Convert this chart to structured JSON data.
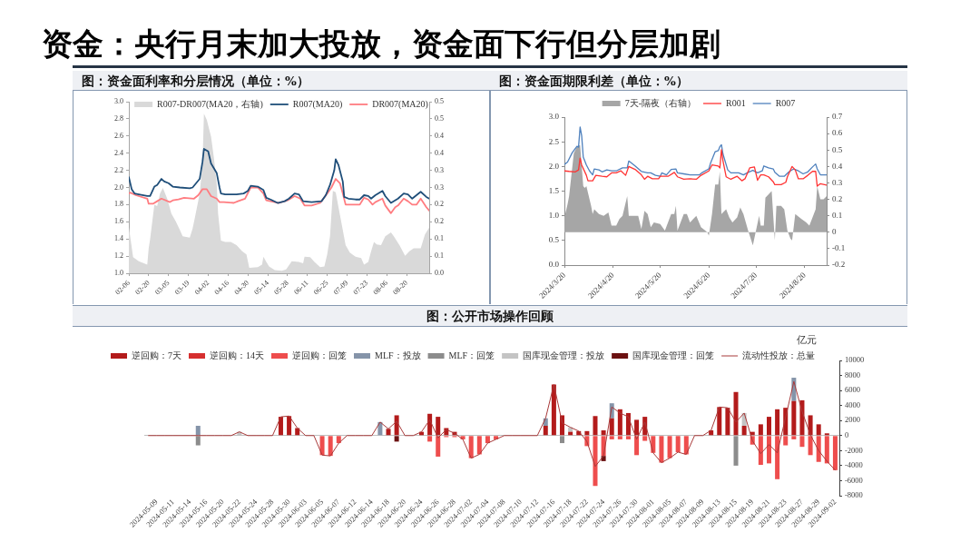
{
  "chart_data": [
    {
      "type": "other",
      "title": "资金：央行月末加大投放，资金面下行但分层加剧"
    },
    {
      "type": "line",
      "title": "图：资金面利率和分层情况（单位：%）",
      "legend": "top",
      "xlim": [
        "--02-06",
        "--09-05"
      ],
      "xticks": [
        {
          "value": "--02-06",
          "label": "02-06"
        },
        {
          "value": "--02-20",
          "label": "02-20"
        },
        {
          "value": "--03-05",
          "label": "03-05"
        },
        {
          "value": "--03-19",
          "label": "03-19"
        },
        {
          "value": "--04-02",
          "label": "04-02"
        },
        {
          "value": "--04-16",
          "label": "04-16"
        },
        {
          "value": "--04-30",
          "label": "04-30"
        },
        {
          "value": "--05-14",
          "label": "05-14"
        },
        {
          "value": "--05-28",
          "label": "05-28"
        },
        {
          "value": "--06-11",
          "label": "06-11"
        },
        {
          "value": "--06-25",
          "label": "06-25"
        },
        {
          "value": "--07-09",
          "label": "07-09"
        },
        {
          "value": "--07-23",
          "label": "07-23"
        },
        {
          "value": "--08-06",
          "label": "08-06"
        },
        {
          "value": "--08-20",
          "label": "08-20"
        }
      ],
      "ylim": [
        1,
        3
      ],
      "yticks": [
        {
          "value": 1,
          "label": "1.0"
        },
        1.2,
        1.4,
        1.6,
        1.8,
        {
          "value": 2,
          "label": "2.0"
        },
        2.2,
        2.4,
        2.6,
        2.8,
        {
          "value": 3,
          "label": "3.0"
        }
      ],
      "y2lim": [
        0,
        0.5
      ],
      "y2ticks": [
        {
          "value": 0,
          "label": "0.0"
        },
        {
          "value": 0.05,
          "label": "0.1"
        },
        0.1,
        {
          "value": 0.15,
          "label": "0.2"
        },
        0.2,
        {
          "value": 0.25,
          "label": "0.3"
        },
        0.3,
        {
          "value": 0.35,
          "label": "0.4"
        },
        0.4,
        {
          "value": 0.45,
          "label": "0.5"
        },
        0.5
      ],
      "series": [
        {
          "name": "R007-DR007(MA20，右轴)",
          "type": "area",
          "axis": "y2",
          "color": "#d9d9d9",
          "x": [
            "--02-06",
            "--02-09",
            "--02-13",
            "--02-19",
            "--02-20",
            "--02-21",
            "--02-24",
            "--02-26",
            "--02-28",
            "--03-01",
            "--03-04",
            "--03-07",
            "--03-10",
            "--03-13",
            "--03-15",
            "--03-20",
            "--03-22",
            "--03-24",
            "--03-27",
            "--03-29",
            "--03-30",
            "--04-01",
            "--04-04",
            "--04-06",
            "--04-08",
            "--04-09",
            "--04-11",
            "--04-14",
            "--04-18",
            "--04-22",
            "--04-26",
            "--04-29",
            "--05-01",
            "--05-07",
            "--05-10",
            "--05-11",
            "--05-13",
            "--05-15",
            "--05-19",
            "--05-24",
            "--05-27",
            "--05-31",
            "--06-05",
            "--06-08",
            "--06-09",
            "--06-13",
            "--06-16",
            "--06-20",
            "--06-23",
            "--06-25",
            "--06-27",
            "--06-29",
            "--07-01",
            "--07-03",
            "--07-06",
            "--07-08",
            "--07-11",
            "--07-15",
            "--07-19",
            "--07-21",
            "--07-24",
            "--07-26",
            "--07-28",
            "--07-30",
            "--08-02",
            "--08-05",
            "--08-09",
            "--08-11",
            "--08-15",
            "--08-19",
            "--08-22",
            "--08-25",
            "--08-28",
            "--08-30",
            "--09-02",
            "--09-05"
          ],
          "values": [
            0.135,
            0.047,
            0.035,
            0.025,
            0.073,
            0.099,
            0.2,
            0.196,
            0.232,
            0.249,
            0.218,
            0.174,
            0.152,
            0.126,
            0.108,
            0.104,
            0.13,
            0.17,
            0.232,
            0.32,
            0.465,
            0.447,
            0.399,
            0.337,
            0.262,
            0.174,
            0.095,
            0.091,
            0.091,
            0.082,
            0.064,
            0.055,
            0.016,
            0.018,
            0.025,
            0.048,
            0.033,
            0.02,
            0.009,
            0.007,
            0.011,
            0.035,
            0.033,
            0.029,
            0.048,
            0.047,
            0.033,
            0.018,
            0.02,
            0.055,
            0.108,
            0.24,
            0.236,
            0.192,
            0.126,
            0.082,
            0.06,
            0.048,
            0.044,
            0.025,
            0.033,
            0.064,
            0.091,
            0.084,
            0.082,
            0.108,
            0.119,
            0.108,
            0.082,
            0.051,
            0.064,
            0.073,
            0.073,
            0.073,
            0.113,
            0.133
          ]
        },
        {
          "name": "R007(MA20)",
          "color": "#1f4e79",
          "x": [
            "--02-06",
            "--02-08",
            "--02-10",
            "--02-13",
            "--02-19",
            "--02-21",
            "--02-24",
            "--02-26",
            "--02-29",
            "--03-02",
            "--03-05",
            "--03-08",
            "--03-13",
            "--03-20",
            "--03-22",
            "--03-27",
            "--03-29",
            "--03-30",
            "--04-02",
            "--04-04",
            "--04-08",
            "--04-10",
            "--04-11",
            "--04-14",
            "--04-22",
            "--04-27",
            "--04-30",
            "--05-02",
            "--05-07",
            "--05-11",
            "--05-13",
            "--05-16",
            "--05-21",
            "--05-26",
            "--05-29",
            "--06-02",
            "--06-05",
            "--06-08",
            "--06-14",
            "--06-21",
            "--06-24",
            "--06-27",
            "--06-30",
            "--07-01",
            "--07-03",
            "--07-06",
            "--07-07",
            "--07-10",
            "--07-15",
            "--07-18",
            "--07-21",
            "--07-24",
            "--07-26",
            "--07-29",
            "--08-03",
            "--08-05",
            "--08-09",
            "--08-14",
            "--08-18",
            "--08-21",
            "--08-24",
            "--08-27",
            "--08-30",
            "--09-03",
            "--09-05"
          ],
          "values": [
            2.12,
            1.98,
            1.93,
            1.92,
            1.9,
            1.9,
            2.01,
            2.03,
            2.1,
            2.07,
            2.05,
            2.01,
            2,
            1.99,
            2,
            2.1,
            2.3,
            2.45,
            2.42,
            2.28,
            2.17,
            2,
            1.93,
            1.92,
            1.92,
            1.93,
            1.96,
            2.02,
            2.01,
            1.97,
            1.88,
            1.86,
            1.82,
            1.84,
            1.87,
            1.93,
            1.92,
            1.84,
            1.83,
            1.84,
            1.91,
            2.03,
            2.2,
            2.33,
            2.26,
            2.07,
            1.89,
            1.87,
            1.86,
            1.86,
            1.91,
            1.9,
            1.87,
            1.91,
            1.96,
            1.9,
            1.82,
            1.87,
            1.93,
            1.92,
            1.87,
            1.91,
            1.95,
            1.89,
            1.87
          ]
        },
        {
          "name": "DR007(MA20)",
          "color": "#ff7c80",
          "x": [
            "--02-06",
            "--02-07",
            "--02-11",
            "--02-19",
            "--02-20",
            "--02-23",
            "--02-26",
            "--02-29",
            "--03-06",
            "--03-08",
            "--03-12",
            "--03-16",
            "--03-23",
            "--03-26",
            "--03-29",
            "--04-01",
            "--04-04",
            "--04-08",
            "--04-10",
            "--04-13",
            "--04-20",
            "--04-23",
            "--04-28",
            "--05-02",
            "--05-07",
            "--05-11",
            "--05-13",
            "--05-19",
            "--05-22",
            "--05-28",
            "--06-02",
            "--06-06",
            "--06-09",
            "--06-14",
            "--06-20",
            "--06-25",
            "--06-28",
            "--07-01",
            "--07-04",
            "--07-06",
            "--07-08",
            "--07-12",
            "--07-18",
            "--07-21",
            "--07-24",
            "--07-27",
            "--07-29",
            "--08-03",
            "--08-05",
            "--08-09",
            "--08-12",
            "--08-14",
            "--08-18",
            "--08-21",
            "--08-24",
            "--08-27",
            "--08-30",
            "--09-03",
            "--09-05"
          ],
          "values": [
            1.93,
            1.94,
            1.91,
            1.87,
            1.81,
            1.81,
            1.84,
            1.87,
            1.83,
            1.85,
            1.86,
            1.88,
            1.87,
            1.91,
            1.98,
            1.98,
            1.9,
            1.87,
            1.83,
            1.83,
            1.82,
            1.84,
            1.87,
            2,
            2,
            1.93,
            1.85,
            1.83,
            1.82,
            1.85,
            1.9,
            1.87,
            1.79,
            1.79,
            1.82,
            1.93,
            2,
            2.1,
            2.05,
            1.93,
            1.8,
            1.8,
            1.8,
            1.88,
            1.86,
            1.8,
            1.83,
            1.87,
            1.79,
            1.7,
            1.77,
            1.79,
            1.87,
            1.84,
            1.8,
            1.8,
            1.87,
            1.77,
            1.73
          ]
        }
      ]
    },
    {
      "type": "line",
      "title": "图：资金面期限利差（单位：%）",
      "legend": "top",
      "xlim": [
        "2024-03-20",
        "2024-09-03"
      ],
      "xticks": [
        {
          "value": "2024-03-20",
          "label": "2024/3/20"
        },
        {
          "value": "2024-04-20",
          "label": "2024/4/20"
        },
        {
          "value": "2024-05-20",
          "label": "2024/5/20"
        },
        {
          "value": "2024-06-20",
          "label": "2024/6/20"
        },
        {
          "value": "2024-07-20",
          "label": "2024/7/20"
        },
        {
          "value": "2024-08-20",
          "label": "2024/8/20"
        }
      ],
      "ylim": [
        0,
        3
      ],
      "yticks": [
        {
          "value": 0,
          "label": "0.0"
        },
        0.5,
        {
          "value": 1,
          "label": "1.0"
        },
        1.5,
        {
          "value": 2,
          "label": "2.0"
        },
        2.5,
        {
          "value": 3,
          "label": "3.0"
        }
      ],
      "y2lim": [
        -0.2,
        0.7
      ],
      "y2ticks": [
        -0.2,
        -0.1,
        0,
        0.1,
        0.2,
        0.3,
        0.4,
        0.5,
        0.6,
        0.7
      ],
      "series": [
        {
          "name": "7天-隔夜（右轴）",
          "type": "area",
          "axis": "y2",
          "color": "#a6a6a6",
          "x": [
            "2024-03-20",
            "2024-03-22",
            "2024-03-23",
            "2024-03-26",
            "2024-03-28",
            "2024-03-30",
            "2024-04-01",
            "2024-04-02",
            "2024-04-03",
            "2024-04-06",
            "2024-04-07",
            "2024-04-08",
            "2024-04-11",
            "2024-04-14",
            "2024-04-17",
            "2024-04-19",
            "2024-04-22",
            "2024-04-24",
            "2024-04-26",
            "2024-04-29",
            "2024-04-30",
            "2024-05-06",
            "2024-05-08",
            "2024-05-10",
            "2024-05-12",
            "2024-05-14",
            "2024-05-16",
            "2024-05-20",
            "2024-05-23",
            "2024-05-27",
            "2024-05-29",
            "2024-05-30",
            "2024-05-31",
            "2024-06-04",
            "2024-06-06",
            "2024-06-08",
            "2024-06-12",
            "2024-06-15",
            "2024-06-19",
            "2024-06-20",
            "2024-06-22",
            "2024-06-24",
            "2024-06-26",
            "2024-06-27",
            "2024-06-28",
            "2024-07-01",
            "2024-07-03",
            "2024-07-05",
            "2024-07-08",
            "2024-07-10",
            "2024-07-12",
            "2024-07-15",
            "2024-07-17",
            "2024-07-18",
            "2024-07-20",
            "2024-07-22",
            "2024-07-23",
            "2024-07-25",
            "2024-07-26",
            "2024-07-29",
            "2024-07-30",
            "2024-07-31",
            "2024-08-01",
            "2024-08-02",
            "2024-08-05",
            "2024-08-07",
            "2024-08-09",
            "2024-08-11",
            "2024-08-12",
            "2024-08-14",
            "2024-08-18",
            "2024-08-21",
            "2024-08-23",
            "2024-08-25",
            "2024-08-27",
            "2024-08-28",
            "2024-08-30",
            "2024-09-01",
            "2024-09-03"
          ],
          "values": [
            0.09,
            0.17,
            0.22,
            0.48,
            0.52,
            0.53,
            0.28,
            0.27,
            0.28,
            0.16,
            0.11,
            0.14,
            0.11,
            0.1,
            0.12,
            0.04,
            0.04,
            0.08,
            0.1,
            0.22,
            0.1,
            0.1,
            0.02,
            0.13,
            0.11,
            0.03,
            0.06,
            0.05,
            0.01,
            0.11,
            0.11,
            0.16,
            0.01,
            0.11,
            0.11,
            0.06,
            0.1,
            0.03,
            0,
            -0.02,
            0.11,
            0.29,
            0.29,
            0.37,
            0.11,
            0.14,
            0.09,
            0.06,
            0.09,
            0.15,
            0.11,
            0.01,
            -0.05,
            -0.08,
            0.01,
            0.1,
            0.04,
            0.04,
            0.21,
            0.24,
            0.25,
            0.1,
            -0.05,
            0.16,
            0.16,
            0.14,
            0.01,
            -0.04,
            -0.05,
            0.11,
            0.08,
            0.06,
            0.04,
            0.09,
            0.14,
            0.28,
            0.2,
            0.2,
            0.22
          ]
        },
        {
          "name": "R001",
          "color": "#ff3333",
          "x": [
            "2024-03-20",
            "2024-03-23",
            "2024-03-27",
            "2024-03-29",
            "2024-03-30",
            "2024-03-31",
            "2024-04-03",
            "2024-04-04",
            "2024-04-07",
            "2024-04-09",
            "2024-04-13",
            "2024-04-16",
            "2024-04-19",
            "2024-04-22",
            "2024-04-25",
            "2024-04-28",
            "2024-04-30",
            "2024-05-04",
            "2024-05-08",
            "2024-05-10",
            "2024-05-12",
            "2024-05-15",
            "2024-05-19",
            "2024-05-20",
            "2024-05-25",
            "2024-05-29",
            "2024-05-31",
            "2024-06-04",
            "2024-06-08",
            "2024-06-12",
            "2024-06-15",
            "2024-06-20",
            "2024-06-22",
            "2024-06-26",
            "2024-06-27",
            "2024-06-28",
            "2024-06-29",
            "2024-07-01",
            "2024-07-04",
            "2024-07-08",
            "2024-07-11",
            "2024-07-13",
            "2024-07-16",
            "2024-07-19",
            "2024-07-21",
            "2024-07-23",
            "2024-07-25",
            "2024-07-28",
            "2024-07-31",
            "2024-08-01",
            "2024-08-05",
            "2024-08-08",
            "2024-08-09",
            "2024-08-12",
            "2024-08-14",
            "2024-08-16",
            "2024-08-19",
            "2024-08-22",
            "2024-08-25",
            "2024-08-27",
            "2024-08-28",
            "2024-08-30",
            "2024-09-03"
          ],
          "values": [
            1.91,
            1.9,
            1.89,
            1.93,
            2.17,
            2.03,
            1.82,
            1.71,
            1.71,
            1.82,
            1.8,
            1.79,
            1.87,
            1.87,
            1.91,
            1.82,
            2,
            1.94,
            1.83,
            1.74,
            1.8,
            1.75,
            1.75,
            1.8,
            1.8,
            1.88,
            1.79,
            1.74,
            1.75,
            1.74,
            1.82,
            1.91,
            2.03,
            2.01,
            1.97,
            2.34,
            2.11,
            1.79,
            1.74,
            1.8,
            1.71,
            1.75,
            1.97,
            1.99,
            1.72,
            1.83,
            1.83,
            1.79,
            1.69,
            1.63,
            1.63,
            1.68,
            1.79,
            2,
            1.93,
            1.75,
            1.75,
            1.82,
            1.9,
            1.9,
            1.6,
            1.65,
            1.62
          ]
        },
        {
          "name": "R007",
          "color": "#4f81bd",
          "x": [
            "2024-03-20",
            "2024-03-22",
            "2024-03-25",
            "2024-03-28",
            "2024-03-29",
            "2024-03-30",
            "2024-03-31",
            "2024-04-01",
            "2024-04-03",
            "2024-04-05",
            "2024-04-07",
            "2024-04-08",
            "2024-04-11",
            "2024-04-13",
            "2024-04-16",
            "2024-04-19",
            "2024-04-22",
            "2024-04-26",
            "2024-04-29",
            "2024-04-30",
            "2024-05-04",
            "2024-05-08",
            "2024-05-12",
            "2024-05-14",
            "2024-05-17",
            "2024-05-20",
            "2024-05-21",
            "2024-05-24",
            "2024-05-27",
            "2024-05-30",
            "2024-05-31",
            "2024-06-04",
            "2024-06-08",
            "2024-06-14",
            "2024-06-16",
            "2024-06-20",
            "2024-06-21",
            "2024-06-24",
            "2024-06-26",
            "2024-06-27",
            "2024-06-28",
            "2024-06-29",
            "2024-07-02",
            "2024-07-04",
            "2024-07-09",
            "2024-07-12",
            "2024-07-15",
            "2024-07-18",
            "2024-07-21",
            "2024-07-24",
            "2024-07-25",
            "2024-07-28",
            "2024-07-31",
            "2024-08-01",
            "2024-08-04",
            "2024-08-07",
            "2024-08-10",
            "2024-08-13",
            "2024-08-16",
            "2024-08-19",
            "2024-08-22",
            "2024-08-25",
            "2024-08-27",
            "2024-08-28",
            "2024-08-30",
            "2024-09-03"
          ],
          "values": [
            2.04,
            2.09,
            2.28,
            2.41,
            2.39,
            2.8,
            2.62,
            2.19,
            2.03,
            1.91,
            1.83,
            1.95,
            1.93,
            1.89,
            1.93,
            1.91,
            1.91,
            1.97,
            1.97,
            2.11,
            2.01,
            1.9,
            1.87,
            1.87,
            1.82,
            1.8,
            1.87,
            1.83,
            1.94,
            1.95,
            1.87,
            1.85,
            1.83,
            1.83,
            1.88,
            1.95,
            2.06,
            2.3,
            2.32,
            2.4,
            2.44,
            2.25,
            1.93,
            1.87,
            1.87,
            1.83,
            1.88,
            1.92,
            1.87,
            1.91,
            2.01,
            1.97,
            1.95,
            1.88,
            1.8,
            1.8,
            1.89,
            1.95,
            1.91,
            1.85,
            1.89,
            1.99,
            2.05,
            1.95,
            1.83,
            1.83
          ]
        }
      ]
    },
    {
      "type": "bar",
      "title": "图：公开市场操作回顾",
      "ylabel": "亿元",
      "legend": "top",
      "stacked": true,
      "categories": [
        null,
        "2024-05-09",
        null,
        "2024-05-11",
        null,
        "2024-05-14",
        null,
        "2024-05-16",
        null,
        "2024-05-20",
        null,
        "2024-05-22",
        null,
        "2024-05-24",
        null,
        "2024-05-28",
        null,
        "2024-05-30",
        null,
        "2024-06-03",
        null,
        "2024-06-05",
        null,
        "2024-06-07",
        null,
        "2024-06-12",
        null,
        "2024-06-14",
        null,
        "2024-06-18",
        null,
        "2024-06-20",
        null,
        "2024-06-24",
        null,
        "2024-06-26",
        null,
        "2024-06-28",
        null,
        "2024-07-02",
        null,
        "2024-07-04",
        null,
        "2024-07-08",
        null,
        "2024-07-10",
        null,
        "2024-07-12",
        null,
        "2024-07-16",
        null,
        "2024-07-18",
        null,
        "2024-07-22",
        null,
        "2024-07-24",
        null,
        "2024-07-26",
        null,
        "2024-07-30",
        null,
        "2024-08-01",
        null,
        "2024-08-05",
        null,
        "2024-08-07",
        null,
        "2024-08-09",
        null,
        "2024-08-13",
        null,
        "2024-08-15",
        null,
        "2024-08-19",
        null,
        "2024-08-21",
        null,
        "2024-08-23",
        null,
        "2024-08-27",
        null,
        "2024-08-29",
        null,
        "2024-09-02"
      ],
      "ylim": [
        -8000,
        10000
      ],
      "yticks": [
        -8000,
        -6000,
        -4000,
        -2000,
        0,
        2000,
        4000,
        6000,
        8000,
        10000
      ],
      "series": [
        {
          "name": "逆回购：7天",
          "color": "#b31b1b",
          "values": [
            null,
            null,
            null,
            null,
            null,
            null,
            null,
            null,
            null,
            null,
            null,
            null,
            null,
            null,
            null,
            null,
            2500,
            2600,
            1000,
            null,
            null,
            null,
            null,
            null,
            null,
            null,
            null,
            null,
            null,
            900,
            2700,
            null,
            null,
            500,
            2900,
            2500,
            1000,
            500,
            null,
            null,
            null,
            null,
            null,
            null,
            null,
            null,
            null,
            null,
            1300,
            6800,
            2700,
            500,
            600,
            600,
            2600,
            700,
            2300,
            3500,
            3000,
            2100,
            2500,
            null,
            null,
            null,
            null,
            null,
            null,
            null,
            700,
            3800,
            3700,
            5800,
            1300,
            500,
            1500,
            2500,
            3500,
            3700,
            4600,
            4700,
            2700,
            1500,
            300,
            null
          ]
        },
        {
          "name": "逆回购：14天",
          "color": "#d62f2f",
          "values": [
            null,
            null,
            null,
            null,
            null,
            null,
            null,
            null,
            null,
            null,
            null,
            null,
            null,
            null,
            null,
            null,
            null,
            null,
            null,
            null,
            null,
            null,
            null,
            null,
            null,
            null,
            null,
            null,
            null,
            null,
            null,
            null,
            null,
            null,
            null,
            null,
            null,
            null,
            null,
            null,
            null,
            null,
            null,
            null,
            null,
            null,
            null,
            null,
            null,
            null,
            null,
            null,
            null,
            null,
            null,
            null,
            null,
            null,
            null,
            null,
            null,
            null,
            null,
            null,
            null,
            null,
            null,
            null,
            null,
            null,
            null,
            null,
            null,
            null,
            null,
            null,
            null,
            null,
            null,
            null,
            null,
            null,
            null,
            null
          ]
        },
        {
          "name": "逆回购：回笼",
          "color": "#ee4d4d",
          "values": [
            null,
            null,
            null,
            null,
            null,
            null,
            null,
            null,
            null,
            null,
            null,
            null,
            null,
            null,
            null,
            null,
            null,
            null,
            null,
            null,
            null,
            -2600,
            -2700,
            -1000,
            null,
            null,
            null,
            null,
            null,
            null,
            null,
            null,
            null,
            null,
            -800,
            -2800,
            -200,
            -200,
            -500,
            -3000,
            -2500,
            -1000,
            -500,
            null,
            null,
            null,
            null,
            null,
            null,
            null,
            null,
            null,
            null,
            -1400,
            -6700,
            -2700,
            -500,
            -500,
            -500,
            -2600,
            -700,
            -2300,
            -3600,
            -3000,
            -2200,
            -2500,
            null,
            null,
            null,
            null,
            null,
            null,
            null,
            -1200,
            -3900,
            -3700,
            -5800,
            -1300,
            -500,
            -1500,
            -2600,
            -3500,
            -3700,
            -4600
          ]
        },
        {
          "name": "MLF：投放",
          "color": "#8594a9",
          "values": [
            null,
            null,
            null,
            null,
            null,
            null,
            1300,
            null,
            null,
            null,
            null,
            null,
            null,
            null,
            null,
            null,
            null,
            null,
            null,
            null,
            null,
            null,
            null,
            null,
            null,
            null,
            null,
            null,
            1800,
            null,
            null,
            null,
            null,
            null,
            null,
            null,
            null,
            null,
            null,
            null,
            null,
            null,
            null,
            null,
            null,
            null,
            null,
            null,
            1000,
            null,
            null,
            null,
            null,
            null,
            null,
            null,
            2000,
            null,
            null,
            null,
            null,
            null,
            null,
            null,
            null,
            null,
            null,
            null,
            null,
            null,
            null,
            null,
            null,
            null,
            null,
            null,
            null,
            null,
            3100,
            null,
            null,
            null,
            null,
            null
          ]
        },
        {
          "name": "MLF：回笼",
          "color": "#8c8c8c",
          "values": [
            null,
            null,
            null,
            null,
            null,
            null,
            -1300,
            null,
            null,
            null,
            null,
            null,
            null,
            null,
            null,
            null,
            null,
            null,
            null,
            null,
            null,
            null,
            null,
            null,
            null,
            null,
            null,
            null,
            null,
            null,
            null,
            null,
            null,
            null,
            null,
            null,
            null,
            null,
            null,
            null,
            null,
            null,
            null,
            null,
            null,
            null,
            null,
            null,
            null,
            null,
            -1000,
            null,
            null,
            null,
            null,
            null,
            null,
            null,
            null,
            null,
            null,
            null,
            null,
            null,
            null,
            null,
            null,
            null,
            null,
            null,
            null,
            -4000,
            null,
            null,
            null,
            null,
            null,
            null,
            null,
            null,
            null,
            null,
            null,
            null
          ]
        },
        {
          "name": "国库现金管理：投放",
          "color": "#c4c4c4",
          "values": [
            null,
            null,
            null,
            null,
            null,
            null,
            null,
            null,
            null,
            null,
            null,
            500,
            null,
            null,
            null,
            null,
            null,
            null,
            null,
            null,
            null,
            null,
            null,
            null,
            null,
            null,
            null,
            null,
            null,
            null,
            null,
            null,
            null,
            null,
            null,
            null,
            null,
            null,
            null,
            null,
            null,
            null,
            null,
            null,
            null,
            null,
            null,
            null,
            null,
            null,
            null,
            600,
            null,
            null,
            null,
            null,
            null,
            null,
            null,
            null,
            null,
            null,
            null,
            null,
            null,
            null,
            null,
            null,
            null,
            null,
            null,
            null,
            1700,
            null,
            null,
            null,
            null,
            null,
            null,
            null,
            null,
            null,
            null,
            null
          ]
        },
        {
          "name": "国库现金管理：回笼",
          "color": "#6b1111",
          "values": [
            null,
            null,
            null,
            null,
            null,
            null,
            null,
            null,
            null,
            null,
            null,
            null,
            null,
            null,
            null,
            null,
            null,
            null,
            null,
            null,
            null,
            null,
            null,
            null,
            null,
            null,
            null,
            null,
            null,
            null,
            -800,
            null,
            null,
            null,
            null,
            null,
            null,
            null,
            null,
            null,
            null,
            null,
            null,
            null,
            null,
            null,
            null,
            null,
            null,
            null,
            null,
            null,
            null,
            null,
            null,
            -700,
            null,
            null,
            null,
            null,
            null,
            null,
            null,
            null,
            null,
            null,
            null,
            null,
            null,
            null,
            null,
            null,
            null,
            null,
            null,
            null,
            null,
            null,
            null,
            null,
            null,
            null,
            null,
            null
          ]
        },
        {
          "name": "流动性投放：总量",
          "type": "line",
          "color": "#a83a3a",
          "values": [
            0,
            0,
            0,
            0,
            0,
            0,
            0,
            0,
            0,
            0,
            0,
            500,
            0,
            0,
            0,
            0,
            2500,
            2600,
            1000,
            0,
            0,
            -2600,
            -2700,
            -1000,
            0,
            0,
            0,
            0,
            1800,
            900,
            1900,
            0,
            0,
            500,
            2100,
            -300,
            800,
            300,
            -500,
            -3000,
            -2500,
            -1000,
            -500,
            0,
            0,
            0,
            0,
            0,
            2300,
            6800,
            1700,
            1100,
            600,
            -800,
            -4100,
            -2700,
            3800,
            3000,
            2500,
            -500,
            1800,
            -2300,
            -3600,
            -3000,
            -2200,
            -2500,
            0,
            0,
            700,
            3800,
            3700,
            1800,
            3000,
            -700,
            -2400,
            -1200,
            -2300,
            2400,
            7200,
            3200,
            100,
            -2000,
            -3400,
            -4600
          ]
        }
      ]
    }
  ]
}
